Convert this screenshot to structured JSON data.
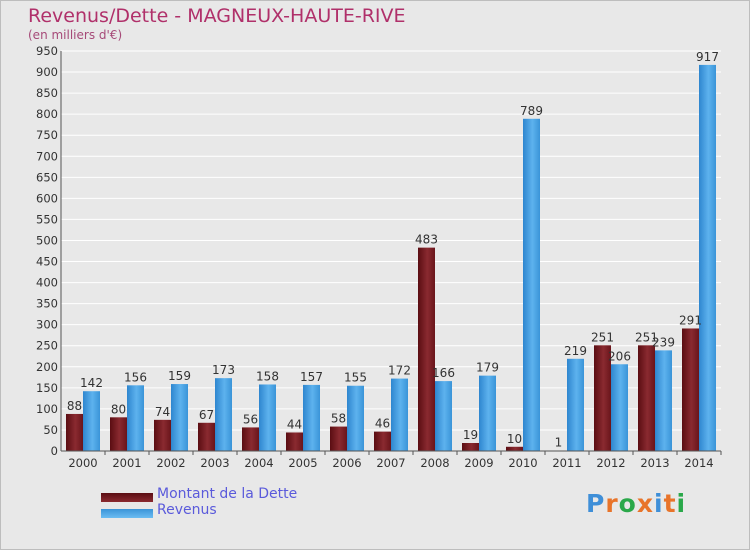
{
  "chart_data": {
    "type": "bar",
    "title": "Revenus/Dette - MAGNEUX-HAUTE-RIVE",
    "subtitle": "(en milliers d'€)",
    "categories": [
      "2000",
      "2001",
      "2002",
      "2003",
      "2004",
      "2005",
      "2006",
      "2007",
      "2008",
      "2009",
      "2010",
      "2011",
      "2012",
      "2013",
      "2014"
    ],
    "series": [
      {
        "name": "Montant de la Dette",
        "values": [
          88,
          80,
          74,
          67,
          56,
          44,
          58,
          46,
          483,
          19,
          10,
          1,
          251,
          251,
          291
        ],
        "color": "#7a1c22"
      },
      {
        "name": "Revenus",
        "values": [
          142,
          156,
          159,
          173,
          158,
          157,
          155,
          172,
          166,
          179,
          789,
          219,
          206,
          239,
          917
        ],
        "color": "#4ea6e6"
      }
    ],
    "ylim": [
      0,
      950
    ],
    "ytick_step": 50,
    "grid": true,
    "legend_position": "bottom-left"
  },
  "logo": {
    "text": "Proxiti"
  }
}
